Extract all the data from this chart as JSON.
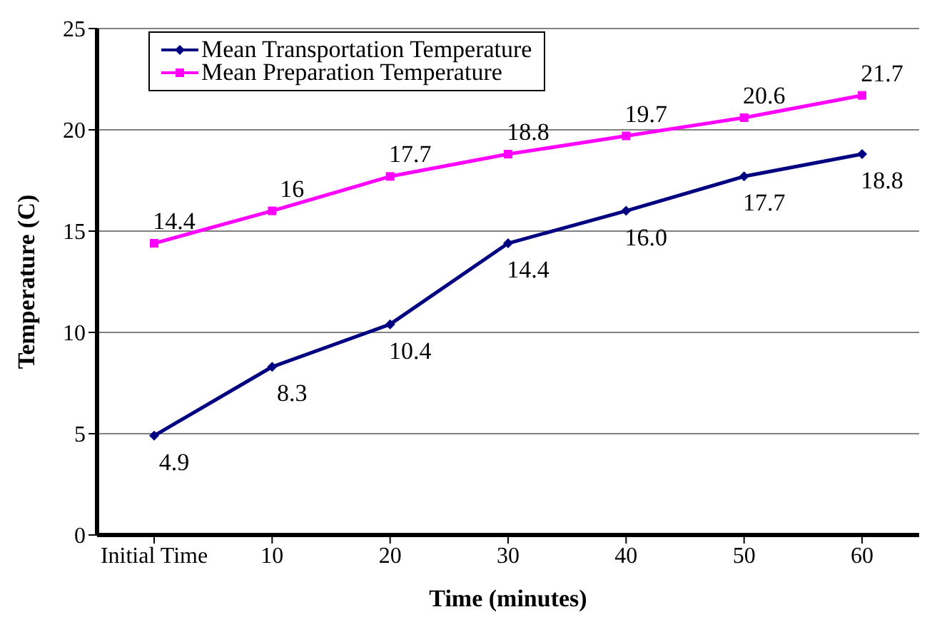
{
  "chart_data": {
    "type": "line",
    "xlabel": "Time (minutes)",
    "ylabel": "Temperature (C)",
    "categories": [
      "Initial Time",
      "10",
      "20",
      "30",
      "40",
      "50",
      "60"
    ],
    "series": [
      {
        "name": "Mean Transportation Temperature",
        "color": "#000080",
        "marker": "diamond",
        "values": [
          4.9,
          8.3,
          10.4,
          14.4,
          16.0,
          17.7,
          18.8
        ],
        "value_labels": [
          "4.9",
          "8.3",
          "10.4",
          "14.4",
          "16.0",
          "17.7",
          "18.8"
        ]
      },
      {
        "name": "Mean Preparation Temperature",
        "color": "#ff00ff",
        "marker": "square",
        "values": [
          14.4,
          16,
          17.7,
          18.8,
          19.7,
          20.6,
          21.7
        ],
        "value_labels": [
          "14.4",
          "16",
          "17.7",
          "18.8",
          "19.7",
          "20.6",
          "21.7"
        ]
      }
    ],
    "ylim": [
      0,
      25
    ],
    "yticks": [
      0,
      5,
      10,
      15,
      20,
      25
    ],
    "grid": "y",
    "legend": "top left"
  }
}
